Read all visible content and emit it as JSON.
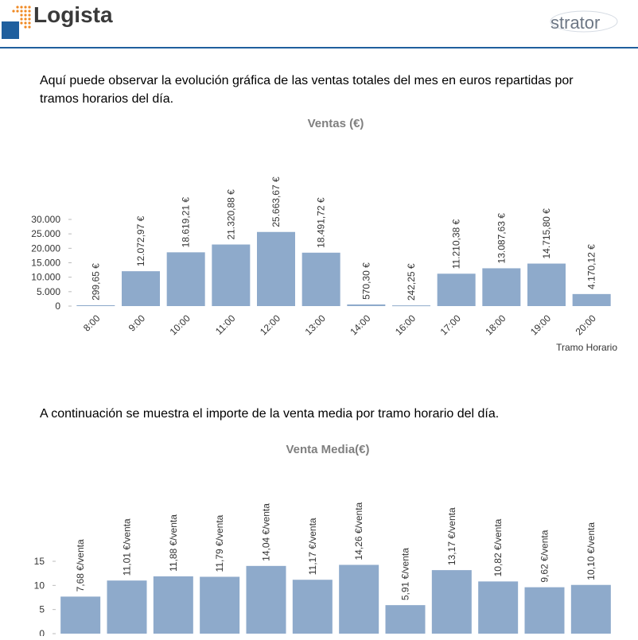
{
  "header": {
    "logo": "Logista",
    "brand": "strator"
  },
  "paragraphs": [
    "Aquí puede observar la evolución gráfica de las ventas totales del mes en euros repartidas por tramos horarios del día.",
    "A continuación se muestra el importe de la venta media por tramo horario del día."
  ],
  "chart_data": [
    {
      "type": "bar",
      "title": "Ventas (€)",
      "x_label": "Tramo Horario",
      "color": "#8eaacb",
      "categories": [
        "8:00",
        "9:00",
        "10:00",
        "11:00",
        "12:00",
        "13:00",
        "14:00",
        "16:00",
        "17:00",
        "18:00",
        "19:00",
        "20:00"
      ],
      "values": [
        299.65,
        12072.97,
        18619.21,
        21320.88,
        25663.67,
        18491.72,
        570.3,
        242.25,
        11210.38,
        13087.63,
        14715.8,
        4170.12
      ],
      "value_labels": [
        "299,65 €",
        "12.072,97 €",
        "18.619,21 €",
        "21.320,88 €",
        "25.663,67 €",
        "18.491,72 €",
        "570,30 €",
        "242,25 €",
        "11.210,38 €",
        "13.087,63 €",
        "14.715,80 €",
        "4.170,12 €"
      ],
      "ylim": [
        0,
        30000
      ],
      "yticks": [
        0,
        {
          "value": 5000,
          "label": "5.000"
        },
        {
          "value": 10000,
          "label": "10.000"
        },
        {
          "value": 15000,
          "label": "15.000"
        },
        {
          "value": 20000,
          "label": "20.000"
        },
        {
          "value": 25000,
          "label": "25.000"
        },
        {
          "value": 30000,
          "label": "30.000"
        }
      ]
    },
    {
      "type": "bar",
      "title": "Venta Media(€)",
      "color": "#8eaacb",
      "values": [
        7.68,
        11.01,
        11.88,
        11.79,
        14.04,
        11.17,
        14.26,
        5.91,
        13.17,
        10.82,
        9.62,
        10.1
      ],
      "value_labels": [
        "7,68 €/venta",
        "11,01 €/venta",
        "11,88 €/venta",
        "11,79 €/venta",
        "14,04 €/venta",
        "11,17 €/venta",
        "14,26 €/venta",
        "5,91 €/venta",
        "13,17 €/venta",
        "10,82 €/venta",
        "9,62 €/venta",
        "10,10 €/venta"
      ],
      "ylim": [
        0,
        15
      ],
      "yticks": [
        0,
        5,
        10,
        15
      ]
    }
  ]
}
